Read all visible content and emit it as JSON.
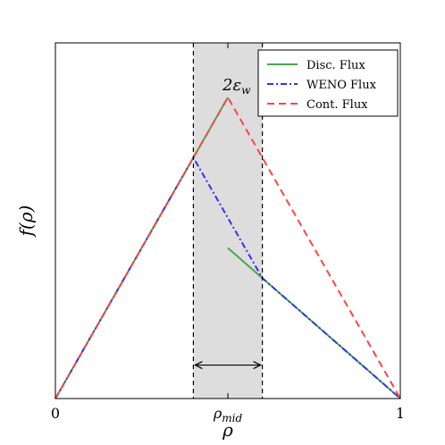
{
  "chart_data": {
    "type": "line",
    "title": "",
    "xlabel": "ρ",
    "ylabel": "f(ρ)",
    "xlim": [
      0,
      1
    ],
    "ylim": [
      0,
      1.063
    ],
    "grid": false,
    "legend_position": "top-right",
    "x_ticks": [
      {
        "value": 0,
        "label": "0"
      },
      {
        "value": 0.5,
        "label": "ρ",
        "sub": "mid"
      },
      {
        "value": 1,
        "label": "1"
      }
    ],
    "series": [
      {
        "name": "Disc. Flux",
        "color": "#4ca64c",
        "dash": "solid",
        "segments": [
          [
            [
              0,
              0
            ],
            [
              0.5,
              0.9
            ]
          ],
          [
            [
              0.5,
              0.45
            ],
            [
              1,
              0
            ]
          ]
        ]
      },
      {
        "name": "WENO Flux",
        "color": "#3333ee",
        "dash": "dashdot",
        "segments": [
          [
            [
              0,
              0
            ],
            [
              0.4,
              0.72
            ],
            [
              0.6,
              0.36
            ],
            [
              1,
              0
            ]
          ]
        ]
      },
      {
        "name": "Cont. Flux",
        "color": "#ff4444",
        "dash": "dashed",
        "segments": [
          [
            [
              0,
              0
            ],
            [
              0.5,
              0.9
            ],
            [
              1,
              0
            ]
          ]
        ]
      }
    ],
    "shaded_region": {
      "x": [
        0.4,
        0.6
      ],
      "color": "#dddddd"
    },
    "vlines": [
      0.4,
      0.6
    ],
    "arrow": {
      "x": [
        0.4,
        0.6
      ],
      "y": 0.1
    },
    "annotations": [
      {
        "text": "2ε",
        "sub": "w",
        "x": 0.5,
        "y": 0.9
      }
    ]
  }
}
